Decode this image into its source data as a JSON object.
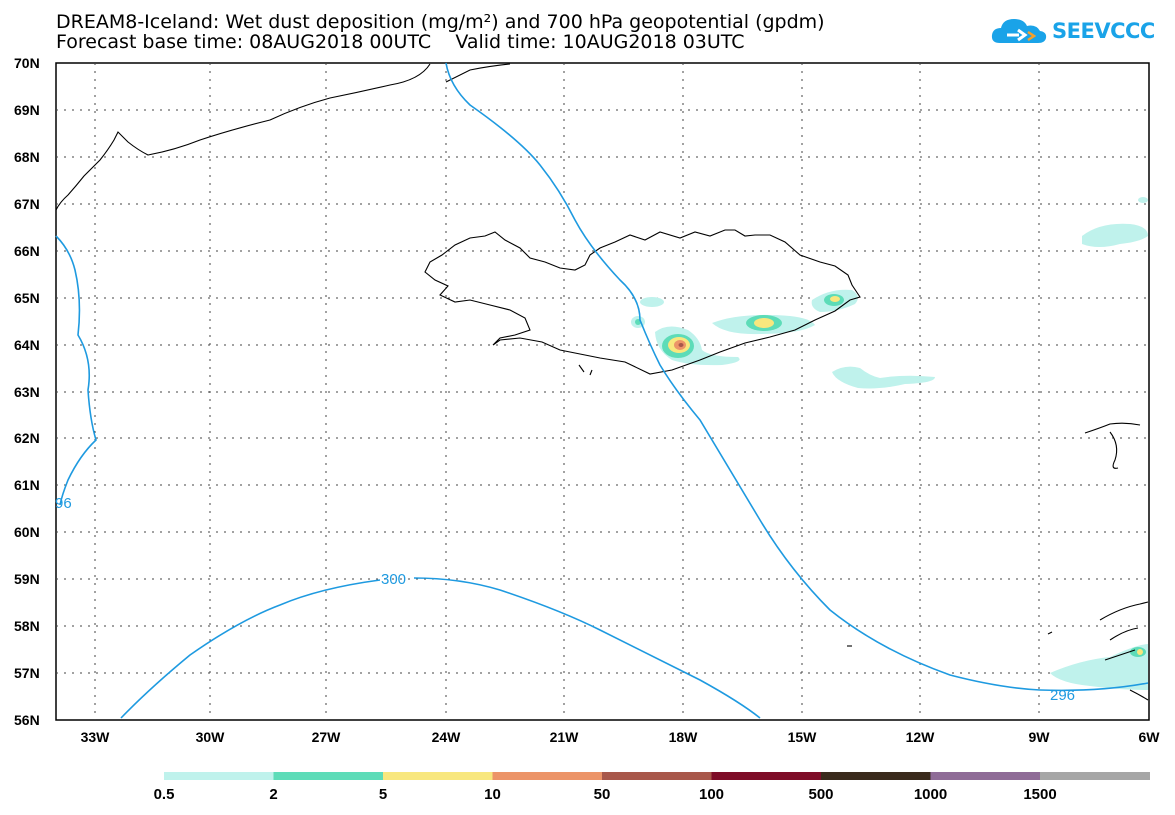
{
  "title": {
    "line1": "DREAM8-Iceland: Wet dust deposition (mg/m²) and 700 hPa geopotential (gpdm)",
    "line2": "Forecast base time: 08AUG2018 00UTC    Valid time: 10AUG2018 03UTC"
  },
  "logo": {
    "text": "SEEVCCC",
    "icon": "cloud-icon",
    "color": "#1aa3e8"
  },
  "map": {
    "lat_labels": [
      "70N",
      "69N",
      "68N",
      "67N",
      "66N",
      "65N",
      "64N",
      "63N",
      "62N",
      "61N",
      "60N",
      "59N",
      "58N",
      "57N",
      "56N"
    ],
    "lon_labels": [
      "33W",
      "30W",
      "27W",
      "24W",
      "21W",
      "18W",
      "15W",
      "12W",
      "9W",
      "6W"
    ],
    "contour_labels": [
      "96",
      "300",
      "296"
    ],
    "contour_color": "#1e9ae0",
    "coastline_color": "#000000"
  },
  "colorbar": {
    "colors": [
      "#bff2ec",
      "#5ddcb8",
      "#f8e77e",
      "#ec9468",
      "#a8574a",
      "#7e0c27",
      "#3a2a1c",
      "#8f6c97",
      "#a6a6a6"
    ],
    "labels": [
      "0.5",
      "2",
      "5",
      "10",
      "50",
      "100",
      "500",
      "1000",
      "1500"
    ]
  }
}
